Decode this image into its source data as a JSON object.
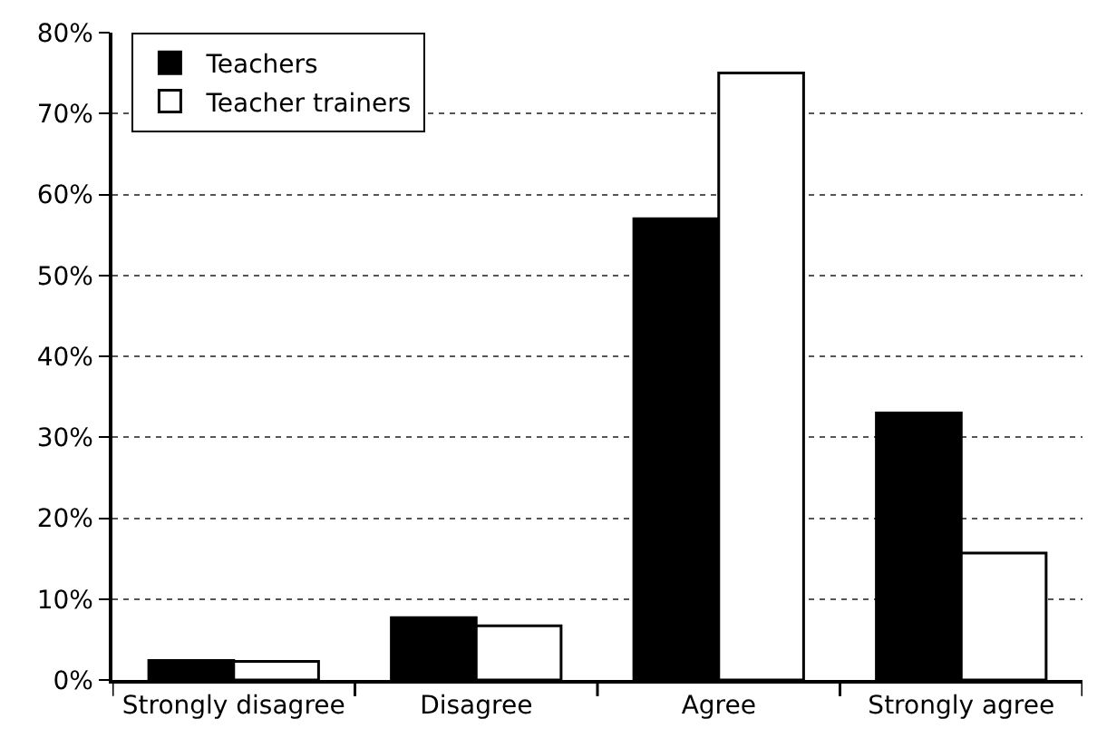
{
  "chart_data": {
    "type": "bar",
    "categories": [
      "Strongly disagree",
      "Disagree",
      "Agree",
      "Strongly agree"
    ],
    "series": [
      {
        "name": "Teachers",
        "color": "#000000",
        "values": [
          2.4,
          7.7,
          57,
          33
        ]
      },
      {
        "name": "Teacher trainers",
        "color": "#ffffff",
        "values": [
          2.3,
          6.7,
          75,
          15.7
        ]
      }
    ],
    "ylim": [
      0,
      80
    ],
    "yticks": [
      {
        "value": 0,
        "label": "0%"
      },
      {
        "value": 10,
        "label": "10%"
      },
      {
        "value": 20,
        "label": "20%"
      },
      {
        "value": 30,
        "label": "30%"
      },
      {
        "value": 40,
        "label": "40%"
      },
      {
        "value": 50,
        "label": "50%"
      },
      {
        "value": 60,
        "label": "60%"
      },
      {
        "value": 70,
        "label": "70%"
      },
      {
        "value": 80,
        "label": "80%"
      }
    ],
    "grid": "y",
    "legend": "top left"
  }
}
